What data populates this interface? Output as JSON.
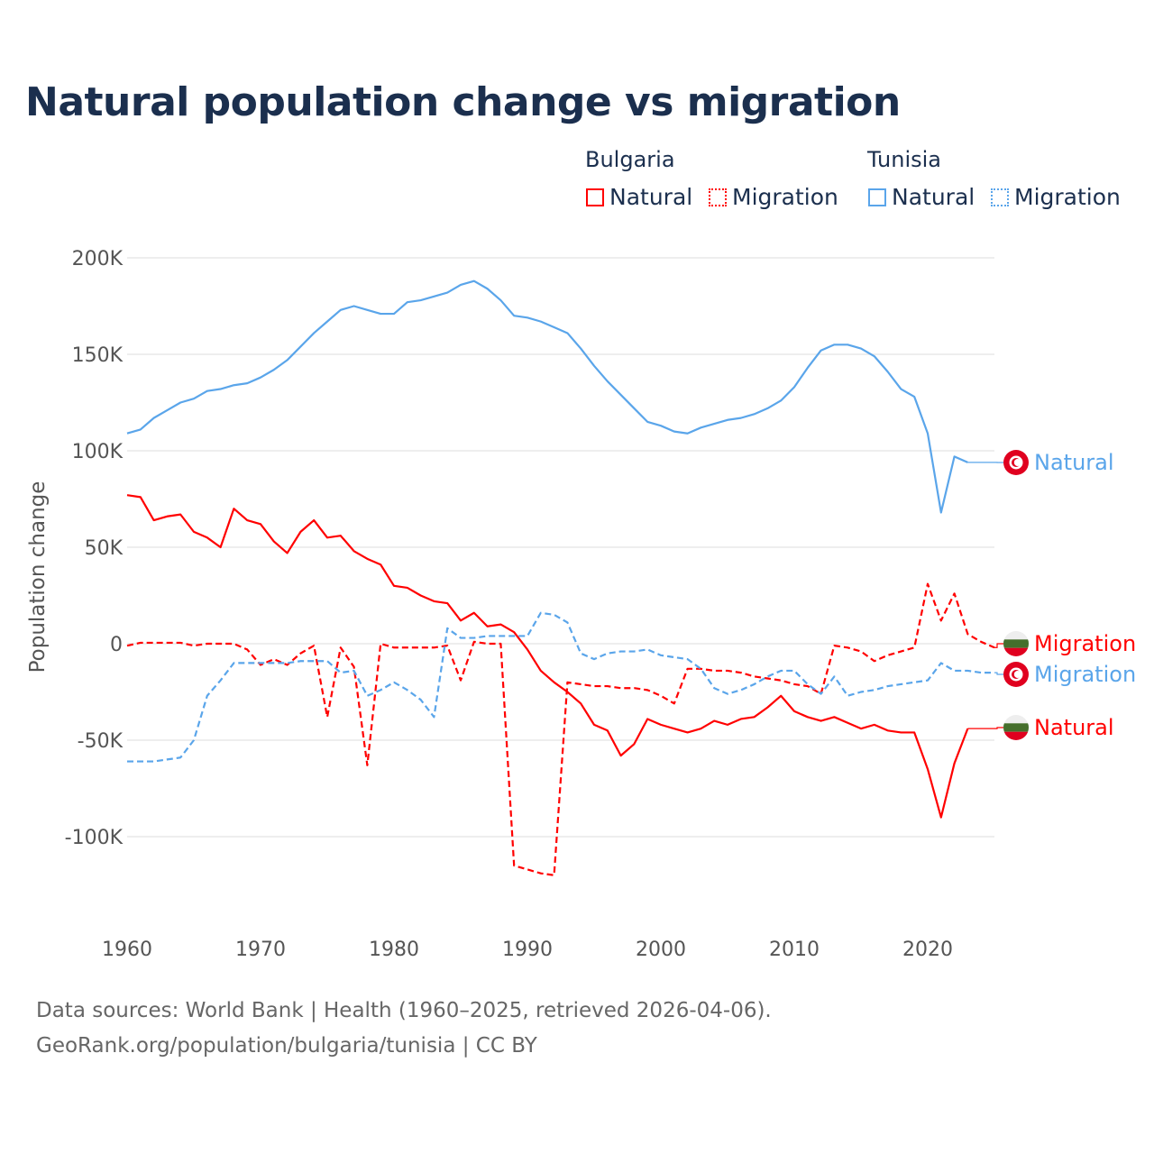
{
  "chart_data": {
    "type": "line",
    "title": "Natural population change vs migration",
    "xlabel": "",
    "ylabel": "Population change",
    "xlim": [
      1960,
      2025
    ],
    "ylim": [
      -125000,
      210000
    ],
    "grid": true,
    "legend_placement": "top-right",
    "x_ticks": [
      1960,
      1970,
      1980,
      1990,
      2000,
      2010,
      2020
    ],
    "x_tick_labels": [
      "1960",
      "1970",
      "1980",
      "1990",
      "2000",
      "2010",
      "2020"
    ],
    "y_ticks": [
      200000,
      150000,
      100000,
      50000,
      0,
      -50000,
      -100000
    ],
    "y_tick_labels": [
      "200K",
      "150K",
      "100K",
      "50K",
      "0",
      "-50K",
      "-100K"
    ],
    "legend": {
      "groups": [
        {
          "name": "Bulgaria",
          "items": [
            "Natural",
            "Migration"
          ]
        },
        {
          "name": "Tunisia",
          "items": [
            "Natural",
            "Migration"
          ]
        }
      ]
    },
    "series": [
      {
        "name": "Tunisia Natural",
        "country": "Tunisia",
        "label": "Natural",
        "color": "#5aa5ea",
        "dash": false,
        "start_year": 1960,
        "values": [
          109,
          111,
          117,
          121,
          125,
          127,
          131,
          132,
          134,
          135,
          138,
          142,
          147,
          154,
          161,
          167,
          173,
          175,
          173,
          171,
          171,
          177,
          178,
          180,
          182,
          186,
          188,
          184,
          178,
          170,
          169,
          167,
          164,
          161,
          153,
          144,
          136,
          129,
          122,
          115,
          113,
          110,
          109,
          112,
          114,
          116,
          117,
          119,
          122,
          126,
          133,
          143,
          152,
          155,
          155,
          153,
          149,
          141,
          132,
          128,
          109,
          68,
          97,
          94
        ]
      },
      {
        "name": "Bulgaria Natural",
        "country": "Bulgaria",
        "label": "Natural",
        "color": "#ff0000",
        "dash": false,
        "start_year": 1960,
        "values": [
          77,
          76,
          64,
          66,
          67,
          58,
          55,
          50,
          70,
          64,
          62,
          53,
          47,
          58,
          64,
          55,
          56,
          48,
          44,
          41,
          30,
          29,
          25,
          22,
          21,
          12,
          16,
          9,
          10,
          6,
          -3,
          -14,
          -20,
          -25,
          -31,
          -42,
          -45,
          -58,
          -52,
          -39,
          -42,
          -44,
          -46,
          -44,
          -40,
          -42,
          -39,
          -38,
          -33,
          -27,
          -35,
          -38,
          -40,
          -38,
          -41,
          -44,
          -42,
          -45,
          -46,
          -46,
          -65,
          -90,
          -62,
          -44
        ]
      },
      {
        "name": "Bulgaria Migration",
        "country": "Bulgaria",
        "label": "Migration",
        "color": "#ff0000",
        "dash": true,
        "start_year": 1960,
        "values": [
          -1,
          0.5,
          0.5,
          0.5,
          0.5,
          -1,
          0,
          0,
          0,
          -3,
          -11,
          -8,
          -11,
          -5,
          -1,
          -38,
          -2,
          -12,
          -63,
          0,
          -2,
          -2,
          -2,
          -2,
          -1,
          -19,
          1,
          0,
          0,
          -115,
          -117,
          -119,
          -120,
          -20,
          -21,
          -22,
          -22,
          -23,
          -23,
          -24,
          -27,
          -31,
          -13,
          -13,
          -14,
          -14,
          -15,
          -17,
          -18,
          -19,
          -21,
          -22,
          -26,
          -1,
          -2,
          -4,
          -9,
          -6,
          -4,
          -2,
          31,
          12,
          26,
          5,
          1,
          -2
        ]
      },
      {
        "name": "Tunisia Migration",
        "country": "Tunisia",
        "label": "Migration",
        "color": "#5aa5ea",
        "dash": true,
        "start_year": 1960,
        "values": [
          -61,
          -61,
          -61,
          -60,
          -59,
          -50,
          -27,
          -19,
          -10,
          -10,
          -10,
          -10,
          -10,
          -9,
          -9,
          -9,
          -15,
          -14,
          -27,
          -24,
          -20,
          -24,
          -29,
          -38,
          8,
          3,
          3,
          4,
          4,
          4,
          4,
          16,
          15,
          11,
          -5,
          -8,
          -5,
          -4,
          -4,
          -3,
          -6,
          -7,
          -8,
          -13,
          -23,
          -26,
          -24,
          -21,
          -17,
          -14,
          -14,
          -21,
          -26,
          -17,
          -27,
          -25,
          -24,
          -22,
          -21,
          -20,
          -19,
          -10,
          -14,
          -14,
          -15,
          -15
        ]
      }
    ],
    "value_unit": "thousands",
    "end_labels": [
      {
        "text": "Natural",
        "series": 0,
        "flag": "tunisia-flag"
      },
      {
        "text": "Migration",
        "series": 2,
        "flag": "bulgaria-flag"
      },
      {
        "text": "Migration",
        "series": 3,
        "flag": "tunisia-flag"
      },
      {
        "text": "Natural",
        "series": 1,
        "flag": "bulgaria-flag"
      }
    ]
  },
  "legend": {
    "bulgaria": "Bulgaria",
    "tunisia": "Tunisia",
    "natural": "Natural",
    "migration": "Migration"
  },
  "footer": {
    "line1": "Data sources: World Bank | Health (1960–2025, retrieved 2026-04-06).",
    "line2": "GeoRank.org/population/bulgaria/tunisia | CC BY"
  },
  "colors": {
    "bulgaria": "#ff0000",
    "tunisia": "#5aa5ea",
    "title": "#1b2f4e",
    "grid": "#e8e8e8"
  }
}
